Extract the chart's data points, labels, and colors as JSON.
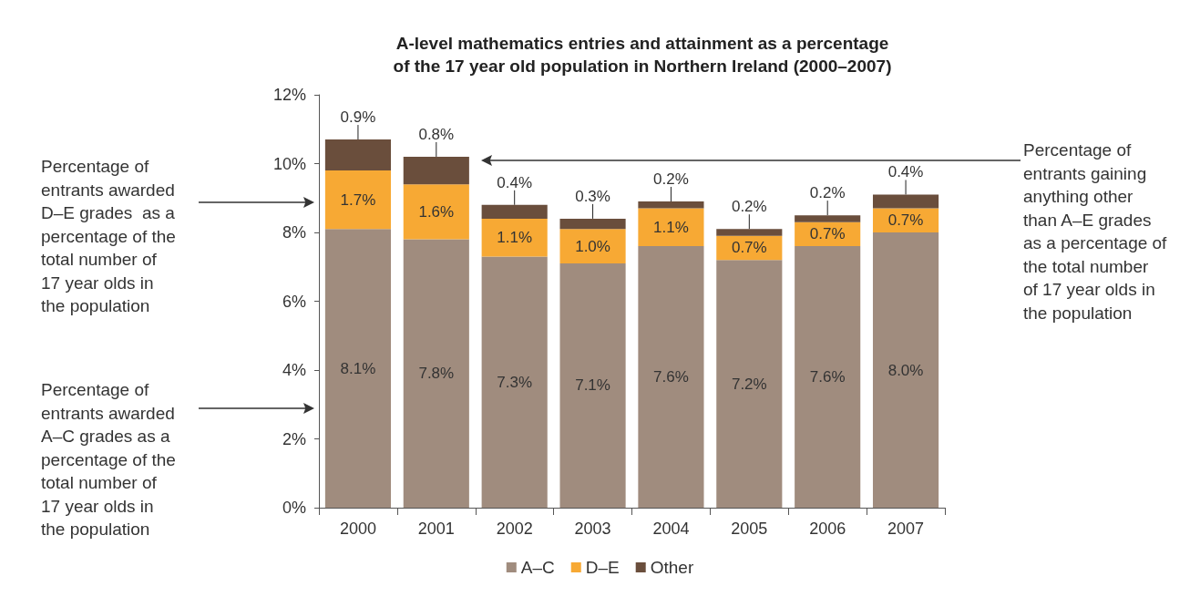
{
  "chart_data": {
    "type": "bar",
    "stacked": true,
    "title": "A-level mathematics entries and attainment as a percentage\nof the 17 year old population in Northern Ireland (2000–2007)",
    "categories": [
      "2000",
      "2001",
      "2002",
      "2003",
      "2004",
      "2005",
      "2006",
      "2007"
    ],
    "series": [
      {
        "name": "A–C",
        "color": "#a08c7e",
        "values": [
          8.1,
          7.8,
          7.3,
          7.1,
          7.6,
          7.2,
          7.6,
          8.0
        ],
        "value_labels": [
          "8.1%",
          "7.8%",
          "7.3%",
          "7.1%",
          "7.6%",
          "7.2%",
          "7.6%",
          "8.0%"
        ]
      },
      {
        "name": "D–E",
        "color": "#f7a934",
        "values": [
          1.7,
          1.6,
          1.1,
          1.0,
          1.1,
          0.7,
          0.7,
          0.7
        ],
        "value_labels": [
          "1.7%",
          "1.6%",
          "1.1%",
          "1.0%",
          "1.1%",
          "0.7%",
          "0.7%",
          "0.7%"
        ]
      },
      {
        "name": "Other",
        "color": "#6a4e3c",
        "values": [
          0.9,
          0.8,
          0.4,
          0.3,
          0.2,
          0.2,
          0.2,
          0.4
        ],
        "value_labels": [
          "0.9%",
          "0.8%",
          "0.4%",
          "0.3%",
          "0.2%",
          "0.2%",
          "0.2%",
          "0.4%"
        ]
      }
    ],
    "ylim": [
      0,
      12
    ],
    "yticks": [
      {
        "value": 0,
        "label": "0%"
      },
      {
        "value": 2,
        "label": "2%"
      },
      {
        "value": 4,
        "label": "4%"
      },
      {
        "value": 6,
        "label": "6%"
      },
      {
        "value": 8,
        "label": "8%"
      },
      {
        "value": 10,
        "label": "10%"
      },
      {
        "value": 12,
        "label": "12%"
      }
    ],
    "grid": false,
    "legend": "bottom",
    "annotations": [
      "Percentage of\nentrants awarded\nD–E grades  as a\npercentage of the\ntotal number of\n17 year olds in\nthe population",
      "Percentage of\nentrants awarded\nA–C grades as a\npercentage of the\ntotal number of\n17 year olds in\nthe population",
      "Percentage of\nentrants gaining\nanything other\nthan A–E grades\nas a percentage of\nthe total number\nof 17 year olds in\nthe population"
    ]
  }
}
